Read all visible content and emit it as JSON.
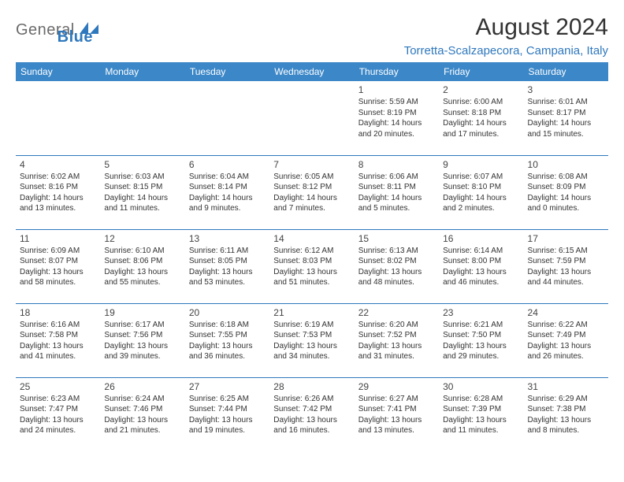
{
  "logo": {
    "text1": "General",
    "text2": "Blue"
  },
  "title": "August 2024",
  "location": "Torretta-Scalzapecora, Campania, Italy",
  "colors": {
    "header_bg": "#3b87c8",
    "header_fg": "#ffffff",
    "accent": "#2f78bd",
    "rule": "#2f78bd",
    "text": "#333333",
    "logo_gray": "#6b6b6b"
  },
  "dayNames": [
    "Sunday",
    "Monday",
    "Tuesday",
    "Wednesday",
    "Thursday",
    "Friday",
    "Saturday"
  ],
  "weeks": [
    [
      null,
      null,
      null,
      null,
      {
        "n": "1",
        "sunrise": "5:59 AM",
        "sunset": "8:19 PM",
        "daylight": "14 hours and 20 minutes."
      },
      {
        "n": "2",
        "sunrise": "6:00 AM",
        "sunset": "8:18 PM",
        "daylight": "14 hours and 17 minutes."
      },
      {
        "n": "3",
        "sunrise": "6:01 AM",
        "sunset": "8:17 PM",
        "daylight": "14 hours and 15 minutes."
      }
    ],
    [
      {
        "n": "4",
        "sunrise": "6:02 AM",
        "sunset": "8:16 PM",
        "daylight": "14 hours and 13 minutes."
      },
      {
        "n": "5",
        "sunrise": "6:03 AM",
        "sunset": "8:15 PM",
        "daylight": "14 hours and 11 minutes."
      },
      {
        "n": "6",
        "sunrise": "6:04 AM",
        "sunset": "8:14 PM",
        "daylight": "14 hours and 9 minutes."
      },
      {
        "n": "7",
        "sunrise": "6:05 AM",
        "sunset": "8:12 PM",
        "daylight": "14 hours and 7 minutes."
      },
      {
        "n": "8",
        "sunrise": "6:06 AM",
        "sunset": "8:11 PM",
        "daylight": "14 hours and 5 minutes."
      },
      {
        "n": "9",
        "sunrise": "6:07 AM",
        "sunset": "8:10 PM",
        "daylight": "14 hours and 2 minutes."
      },
      {
        "n": "10",
        "sunrise": "6:08 AM",
        "sunset": "8:09 PM",
        "daylight": "14 hours and 0 minutes."
      }
    ],
    [
      {
        "n": "11",
        "sunrise": "6:09 AM",
        "sunset": "8:07 PM",
        "daylight": "13 hours and 58 minutes."
      },
      {
        "n": "12",
        "sunrise": "6:10 AM",
        "sunset": "8:06 PM",
        "daylight": "13 hours and 55 minutes."
      },
      {
        "n": "13",
        "sunrise": "6:11 AM",
        "sunset": "8:05 PM",
        "daylight": "13 hours and 53 minutes."
      },
      {
        "n": "14",
        "sunrise": "6:12 AM",
        "sunset": "8:03 PM",
        "daylight": "13 hours and 51 minutes."
      },
      {
        "n": "15",
        "sunrise": "6:13 AM",
        "sunset": "8:02 PM",
        "daylight": "13 hours and 48 minutes."
      },
      {
        "n": "16",
        "sunrise": "6:14 AM",
        "sunset": "8:00 PM",
        "daylight": "13 hours and 46 minutes."
      },
      {
        "n": "17",
        "sunrise": "6:15 AM",
        "sunset": "7:59 PM",
        "daylight": "13 hours and 44 minutes."
      }
    ],
    [
      {
        "n": "18",
        "sunrise": "6:16 AM",
        "sunset": "7:58 PM",
        "daylight": "13 hours and 41 minutes."
      },
      {
        "n": "19",
        "sunrise": "6:17 AM",
        "sunset": "7:56 PM",
        "daylight": "13 hours and 39 minutes."
      },
      {
        "n": "20",
        "sunrise": "6:18 AM",
        "sunset": "7:55 PM",
        "daylight": "13 hours and 36 minutes."
      },
      {
        "n": "21",
        "sunrise": "6:19 AM",
        "sunset": "7:53 PM",
        "daylight": "13 hours and 34 minutes."
      },
      {
        "n": "22",
        "sunrise": "6:20 AM",
        "sunset": "7:52 PM",
        "daylight": "13 hours and 31 minutes."
      },
      {
        "n": "23",
        "sunrise": "6:21 AM",
        "sunset": "7:50 PM",
        "daylight": "13 hours and 29 minutes."
      },
      {
        "n": "24",
        "sunrise": "6:22 AM",
        "sunset": "7:49 PM",
        "daylight": "13 hours and 26 minutes."
      }
    ],
    [
      {
        "n": "25",
        "sunrise": "6:23 AM",
        "sunset": "7:47 PM",
        "daylight": "13 hours and 24 minutes."
      },
      {
        "n": "26",
        "sunrise": "6:24 AM",
        "sunset": "7:46 PM",
        "daylight": "13 hours and 21 minutes."
      },
      {
        "n": "27",
        "sunrise": "6:25 AM",
        "sunset": "7:44 PM",
        "daylight": "13 hours and 19 minutes."
      },
      {
        "n": "28",
        "sunrise": "6:26 AM",
        "sunset": "7:42 PM",
        "daylight": "13 hours and 16 minutes."
      },
      {
        "n": "29",
        "sunrise": "6:27 AM",
        "sunset": "7:41 PM",
        "daylight": "13 hours and 13 minutes."
      },
      {
        "n": "30",
        "sunrise": "6:28 AM",
        "sunset": "7:39 PM",
        "daylight": "13 hours and 11 minutes."
      },
      {
        "n": "31",
        "sunrise": "6:29 AM",
        "sunset": "7:38 PM",
        "daylight": "13 hours and 8 minutes."
      }
    ]
  ],
  "labels": {
    "sunrise": "Sunrise: ",
    "sunset": "Sunset: ",
    "daylight": "Daylight: "
  }
}
